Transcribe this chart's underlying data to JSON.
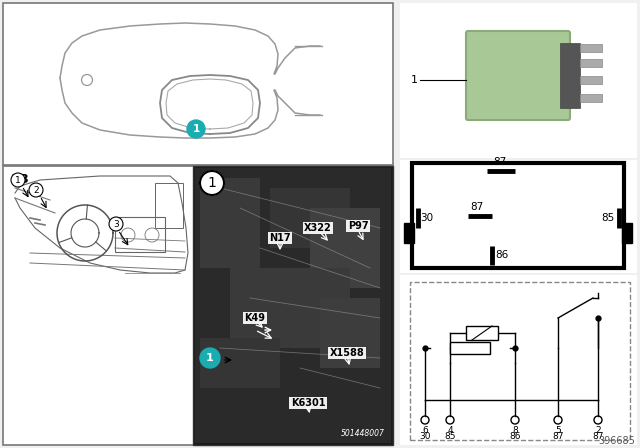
{
  "bg_color": "#f0f0f0",
  "white": "#ffffff",
  "black": "#000000",
  "gray_line": "#888888",
  "dark_gray": "#555555",
  "cyan_color": "#1AACB0",
  "relay_green": "#a8c896",
  "relay_green_dark": "#8aaa78",
  "part_number": "396685",
  "photo_label": "501448007",
  "pin_labels_top": [
    "87",
    "30",
    "87",
    "85",
    "86"
  ],
  "circuit_pin_top": [
    "6",
    "4",
    "8",
    "5",
    "2"
  ],
  "circuit_pin_bot": [
    "30",
    "85",
    "86",
    "87",
    "87"
  ]
}
